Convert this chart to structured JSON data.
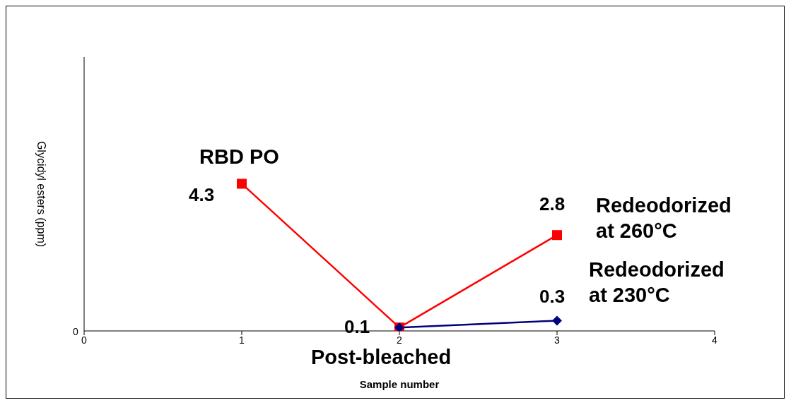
{
  "chart_data": {
    "type": "line",
    "xlabel": "Sample number",
    "ylabel": "Glycidyl esters (ppm)",
    "xlim": [
      0,
      4
    ],
    "xticks": [
      0,
      1,
      2,
      3,
      4
    ],
    "line_style": "solid",
    "series": [
      {
        "color": "#ff0000",
        "marker": "square",
        "x": [
          1,
          2,
          3
        ],
        "values": [
          4.3,
          0.1,
          2.8
        ],
        "value_labels": [
          "4.3",
          "0.1",
          "2.8"
        ]
      },
      {
        "color": "#000080",
        "marker": "diamond",
        "x": [
          2,
          3
        ],
        "values": [
          0.1,
          0.3
        ],
        "value_labels": [
          null,
          "0.3"
        ]
      }
    ],
    "annotations": [
      {
        "text": "RBD PO",
        "x": 1,
        "y": 4.3
      },
      {
        "text": "Post-bleached",
        "x": 2,
        "y": 0.1
      },
      {
        "text": "Redeodorized at 260°C",
        "x": 3,
        "y": 2.8
      },
      {
        "text": "Redeodorized at 230°C",
        "x": 3,
        "y": 0.3
      },
      "0"
    ]
  }
}
